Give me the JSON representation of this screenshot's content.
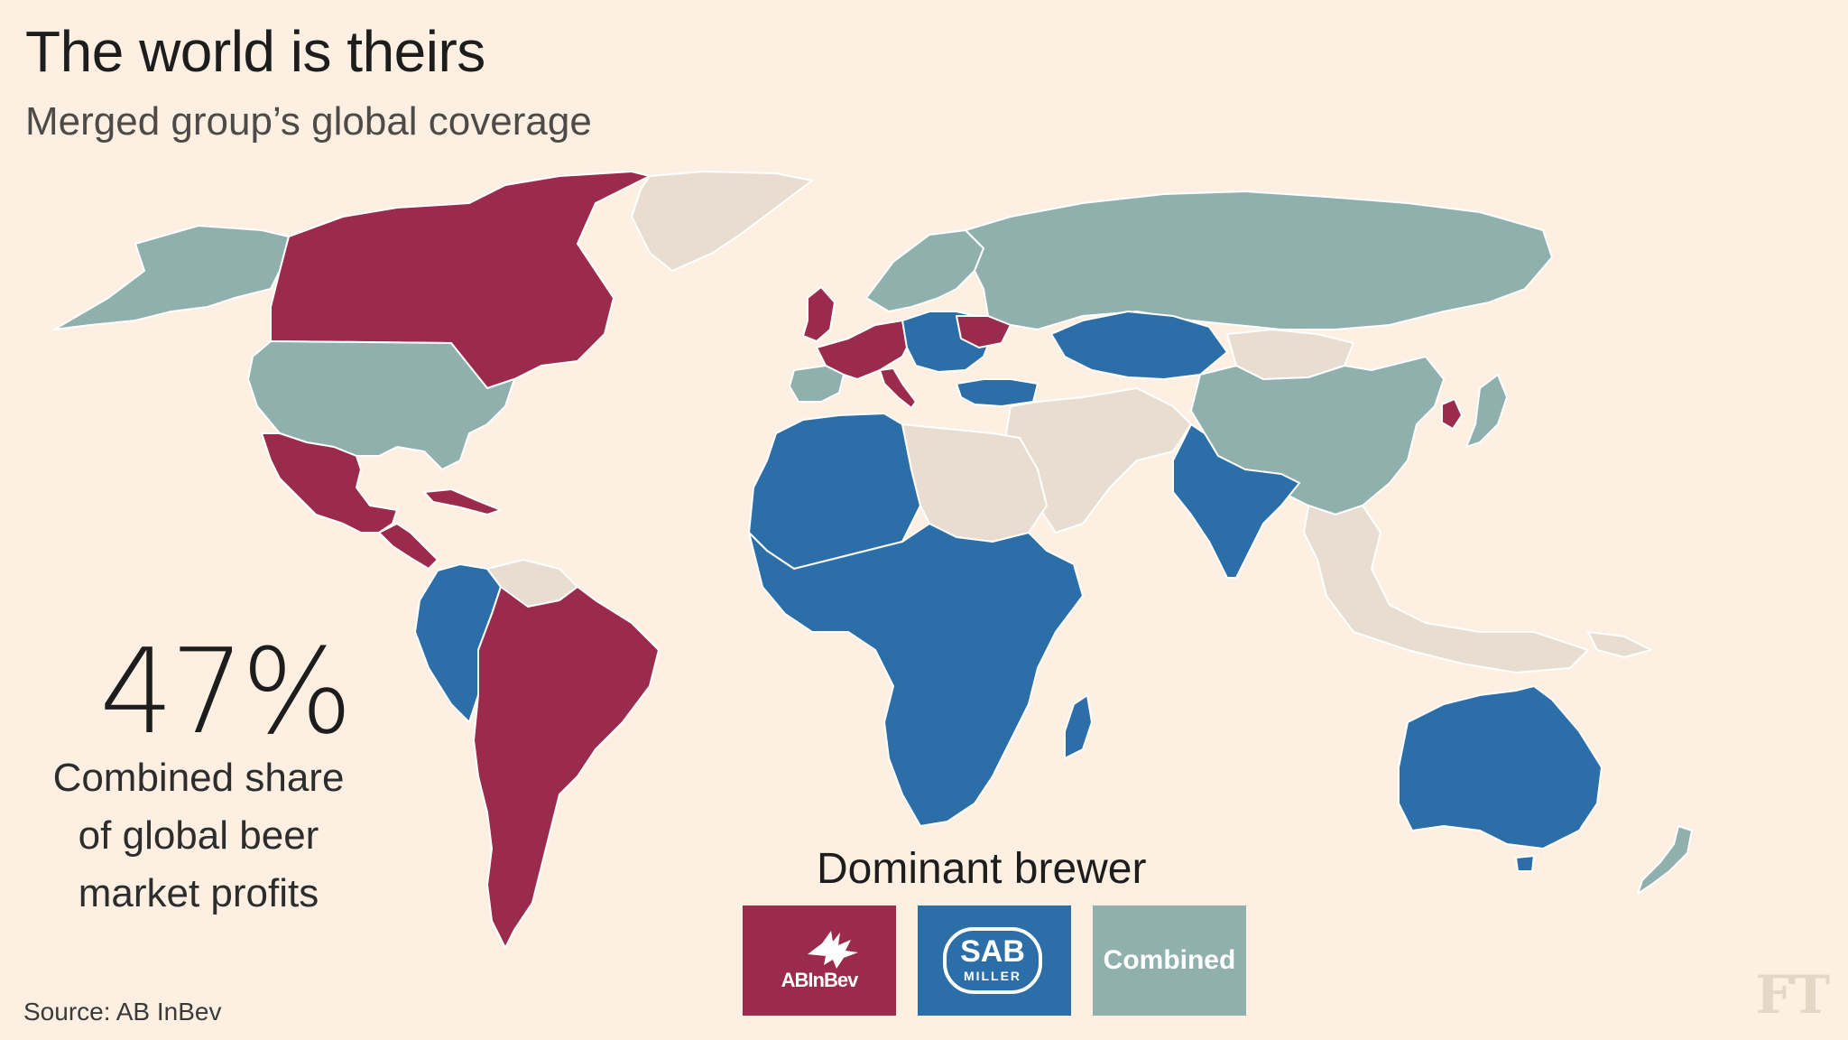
{
  "header": {
    "title": "The world is theirs",
    "subtitle": "Merged group’s global coverage"
  },
  "stat": {
    "value": "47%",
    "caption_lines": [
      "Combined share",
      "of global beer",
      "market profits"
    ]
  },
  "legend": {
    "title": "Dominant brewer",
    "items": [
      {
        "key": "abinbev",
        "label": "ABInBev",
        "color": "#9b2b4c",
        "icon": "eagle-icon"
      },
      {
        "key": "sabmiller",
        "label_top": "SAB",
        "label_bottom": "MILLER",
        "color": "#2c6ea8",
        "icon": "sab-badge-icon"
      },
      {
        "key": "combined",
        "label": "Combined",
        "color": "#8fb0ad"
      }
    ]
  },
  "colors": {
    "background": "#fdf0e2",
    "no_data": "#e8ddd0",
    "border": "#ffffff"
  },
  "map_regions": [
    {
      "name": "Alaska",
      "group": "combined"
    },
    {
      "name": "Canada",
      "group": "abinbev"
    },
    {
      "name": "Greenland",
      "group": "none"
    },
    {
      "name": "United States",
      "group": "combined"
    },
    {
      "name": "Mexico",
      "group": "abinbev"
    },
    {
      "name": "Central America",
      "group": "abinbev"
    },
    {
      "name": "Colombia / Ecuador / Peru",
      "group": "sabmiller"
    },
    {
      "name": "Brazil / Argentina",
      "group": "abinbev"
    },
    {
      "name": "Guianas",
      "group": "none"
    },
    {
      "name": "Western Europe",
      "group": "abinbev"
    },
    {
      "name": "Iberia",
      "group": "combined"
    },
    {
      "name": "Scandinavia",
      "group": "combined"
    },
    {
      "name": "Eastern Europe",
      "group": "sabmiller"
    },
    {
      "name": "Turkey",
      "group": "sabmiller"
    },
    {
      "name": "Russia",
      "group": "combined"
    },
    {
      "name": "Kazakhstan",
      "group": "sabmiller"
    },
    {
      "name": "Mongolia",
      "group": "none"
    },
    {
      "name": "China",
      "group": "combined"
    },
    {
      "name": "South Korea",
      "group": "abinbev"
    },
    {
      "name": "Japan",
      "group": "combined"
    },
    {
      "name": "India",
      "group": "sabmiller"
    },
    {
      "name": "Middle East",
      "group": "none"
    },
    {
      "name": "Southeast Asia",
      "group": "none"
    },
    {
      "name": "Africa",
      "group": "sabmiller"
    },
    {
      "name": "Libya / Egypt",
      "group": "none"
    },
    {
      "name": "Madagascar",
      "group": "sabmiller"
    },
    {
      "name": "Australia",
      "group": "sabmiller"
    },
    {
      "name": "New Zealand",
      "group": "combined"
    }
  ],
  "footer": {
    "source": "Source: AB InBev",
    "brand": "FT"
  }
}
